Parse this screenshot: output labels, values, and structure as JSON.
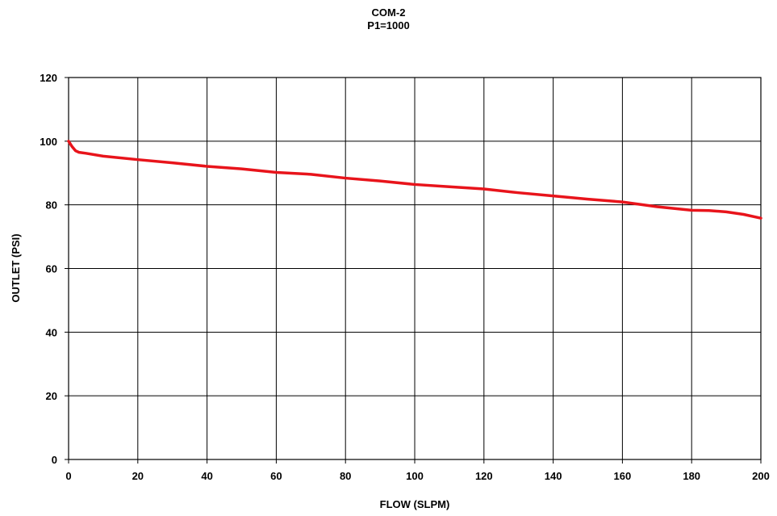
{
  "chart_data": {
    "type": "line",
    "title": "COM-2",
    "subtitle": "P1=1000",
    "xlabel": "FLOW (SLPM)",
    "ylabel": "OUTLET (PSI)",
    "xlim": [
      0,
      200
    ],
    "ylim": [
      0,
      120
    ],
    "x_ticks": [
      0,
      20,
      40,
      60,
      80,
      100,
      120,
      140,
      160,
      180,
      200
    ],
    "y_ticks": [
      0,
      20,
      40,
      60,
      80,
      100,
      120
    ],
    "grid": true,
    "legend": "none",
    "series": [
      {
        "color": "#e8141b",
        "x": [
          0,
          1,
          2,
          3,
          5,
          10,
          20,
          30,
          40,
          50,
          60,
          70,
          80,
          90,
          100,
          110,
          120,
          130,
          140,
          150,
          160,
          170,
          180,
          185,
          190,
          195,
          200
        ],
        "y": [
          100,
          98.3,
          97,
          96.5,
          96.2,
          95.3,
          94.2,
          93.2,
          92.1,
          91.3,
          90.2,
          89.6,
          88.4,
          87.5,
          86.4,
          85.7,
          85.0,
          83.8,
          82.8,
          81.8,
          80.9,
          79.4,
          78.3,
          78.2,
          77.8,
          77.0,
          75.8
        ]
      }
    ]
  }
}
